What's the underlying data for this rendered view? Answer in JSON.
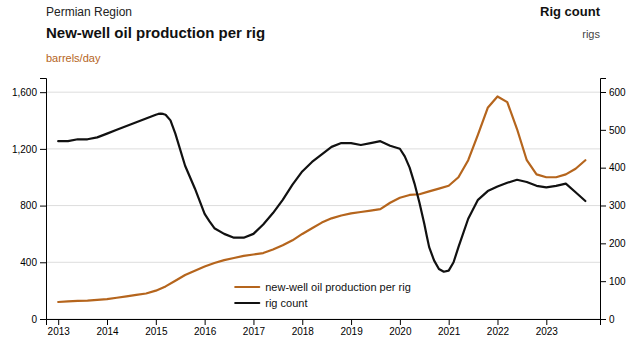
{
  "chart_data": {
    "type": "line",
    "subtitle": "Permian Region",
    "title": "New-well oil production per rig",
    "y_label": "barrels/day",
    "y2_title": "Rig count",
    "y2_label": "rigs",
    "xlim": [
      2012.75,
      2024.1
    ],
    "xticks": [
      2013,
      2014,
      2015,
      2016,
      2017,
      2018,
      2019,
      2020,
      2021,
      2022,
      2023
    ],
    "ylim": [
      0,
      1700
    ],
    "yticks": [
      0,
      400,
      800,
      {
        "value": 1200,
        "label": "1,200"
      },
      {
        "value": 1600,
        "label": "1,600"
      }
    ],
    "y2lim": [
      0,
      637
    ],
    "y2ticks": [
      0,
      100,
      200,
      300,
      400,
      500,
      600
    ],
    "grid": true,
    "legend": "lower center",
    "series": [
      {
        "name": "new-well oil production per rig",
        "color": "#b5651d",
        "x": [
          2013.0,
          2013.2,
          2013.4,
          2013.6,
          2013.8,
          2014.0,
          2014.2,
          2014.4,
          2014.6,
          2014.8,
          2015.0,
          2015.2,
          2015.4,
          2015.6,
          2015.8,
          2016.0,
          2016.2,
          2016.4,
          2016.6,
          2016.8,
          2017.0,
          2017.2,
          2017.4,
          2017.6,
          2017.8,
          2018.0,
          2018.2,
          2018.4,
          2018.6,
          2018.8,
          2019.0,
          2019.2,
          2019.4,
          2019.6,
          2019.8,
          2020.0,
          2020.2,
          2020.4,
          2020.6,
          2020.8,
          2021.0,
          2021.2,
          2021.4,
          2021.6,
          2021.8,
          2022.0,
          2022.2,
          2022.4,
          2022.6,
          2022.8,
          2023.0,
          2023.2,
          2023.4,
          2023.6,
          2023.8
        ],
        "values": [
          120,
          125,
          128,
          130,
          135,
          140,
          150,
          160,
          170,
          180,
          200,
          230,
          270,
          310,
          340,
          370,
          395,
          415,
          430,
          445,
          455,
          465,
          490,
          520,
          555,
          600,
          640,
          680,
          710,
          730,
          745,
          755,
          765,
          775,
          820,
          855,
          875,
          880,
          900,
          920,
          940,
          1000,
          1120,
          1300,
          1490,
          1570,
          1530,
          1340,
          1120,
          1020,
          1000,
          1000,
          1020,
          1060,
          1120
        ]
      },
      {
        "name": "rig count",
        "color": "#111111",
        "axis": "y2",
        "x": [
          2013.0,
          2013.2,
          2013.4,
          2013.6,
          2013.8,
          2014.0,
          2014.2,
          2014.4,
          2014.6,
          2014.8,
          2015.0,
          2015.05,
          2015.1,
          2015.15,
          2015.2,
          2015.3,
          2015.4,
          2015.6,
          2015.8,
          2016.0,
          2016.1,
          2016.2,
          2016.4,
          2016.6,
          2016.8,
          2017.0,
          2017.2,
          2017.4,
          2017.6,
          2017.8,
          2018.0,
          2018.2,
          2018.4,
          2018.6,
          2018.8,
          2019.0,
          2019.2,
          2019.4,
          2019.6,
          2019.8,
          2020.0,
          2020.1,
          2020.2,
          2020.3,
          2020.4,
          2020.5,
          2020.55,
          2020.6,
          2020.7,
          2020.8,
          2020.9,
          2021.0,
          2021.1,
          2021.2,
          2021.4,
          2021.6,
          2021.8,
          2022.0,
          2022.2,
          2022.4,
          2022.6,
          2022.8,
          2023.0,
          2023.2,
          2023.4,
          2023.6,
          2023.8
        ],
        "values": [
          470,
          470,
          475,
          475,
          480,
          490,
          500,
          510,
          520,
          530,
          540,
          542,
          543,
          542,
          540,
          525,
          490,
          405,
          345,
          278,
          258,
          240,
          225,
          215,
          215,
          225,
          250,
          280,
          315,
          355,
          390,
          415,
          435,
          455,
          465,
          465,
          460,
          465,
          470,
          458,
          450,
          430,
          400,
          358,
          308,
          252,
          220,
          190,
          155,
          132,
          125,
          128,
          150,
          190,
          265,
          315,
          338,
          350,
          360,
          368,
          362,
          352,
          348,
          352,
          358,
          335,
          312
        ]
      }
    ]
  }
}
